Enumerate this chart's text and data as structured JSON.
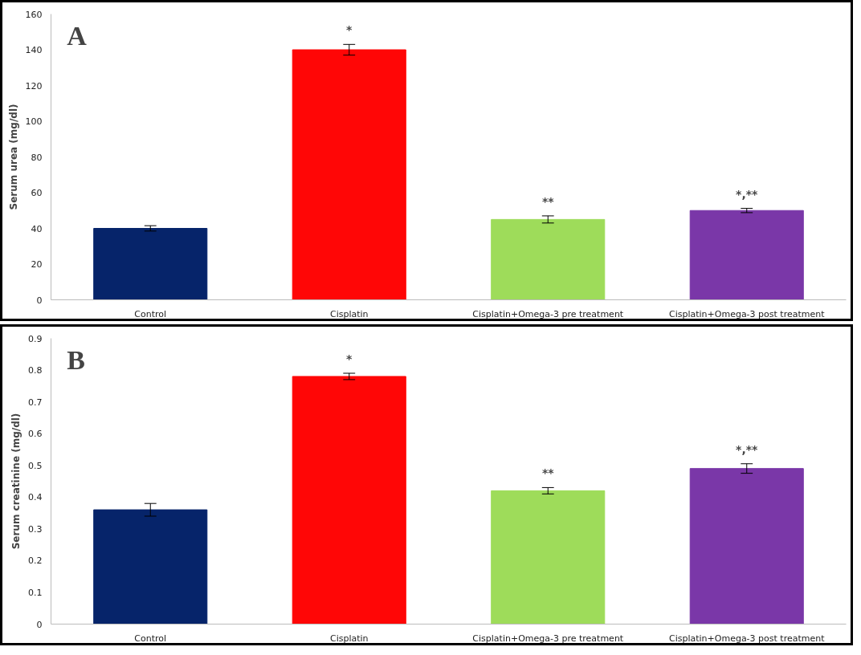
{
  "chart_data": [
    {
      "type": "bar",
      "title": "A",
      "ylabel": "Serum urea (mg/dl)",
      "categories": [
        "Control",
        "Cisplatin",
        "Cisplatin+Omega-3 pre treatment",
        "Cisplatin+Omega-3 post treatment"
      ],
      "values": [
        40,
        140,
        45,
        50
      ],
      "errors": [
        1.5,
        3,
        2,
        1.2
      ],
      "colors": [
        "#06246a",
        "#ff0606",
        "#9edc5a",
        "#7a37a8"
      ],
      "ylim": [
        0,
        160
      ],
      "yticks": [
        0,
        20,
        40,
        60,
        80,
        100,
        120,
        140,
        160
      ],
      "grid": false,
      "annotations": [
        "*",
        "**",
        "*,**"
      ]
    },
    {
      "type": "bar",
      "title": "B",
      "ylabel": "Serum creatinine (mg/dl)",
      "categories": [
        "Control",
        "Cisplatin",
        "Cisplatin+Omega-3 pre treatment",
        "Cisplatin+Omega-3 post treatment"
      ],
      "values": [
        0.36,
        0.78,
        0.42,
        0.49
      ],
      "errors": [
        0.02,
        0.01,
        0.01,
        0.015
      ],
      "colors": [
        "#06246a",
        "#ff0606",
        "#9edc5a",
        "#7a37a8"
      ],
      "ylim": [
        0,
        0.9
      ],
      "yticks": [
        0,
        0.1,
        0.2,
        0.3,
        0.4,
        0.5,
        0.6,
        0.7,
        0.8,
        0.9
      ],
      "grid": false,
      "annotations": [
        "*",
        "**",
        "*,**"
      ]
    }
  ]
}
